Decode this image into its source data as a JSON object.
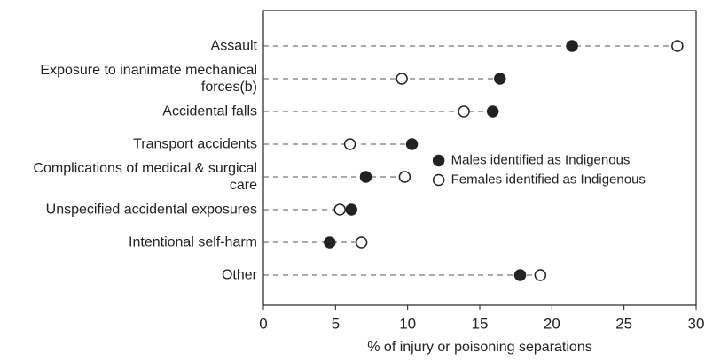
{
  "chart_data": {
    "type": "dot",
    "xlabel": "% of injury or poisoning separations",
    "categories": [
      "Assault",
      "Exposure to inanimate mechanical forces(b)",
      "Accidental falls",
      "Transport accidents",
      "Complications of medical & surgical care",
      "Unspecified accidental exposures",
      "Intentional self-harm",
      "Other"
    ],
    "series": [
      {
        "name": "Males identified as Indigenous",
        "color": "#222222",
        "filled": true,
        "values": [
          21.4,
          16.4,
          15.9,
          10.3,
          7.1,
          6.1,
          4.6,
          17.8
        ]
      },
      {
        "name": "Females identified as Indigenous",
        "color": "#222222",
        "filled": false,
        "values": [
          28.7,
          9.6,
          13.9,
          6.0,
          9.8,
          5.3,
          6.8,
          19.2
        ]
      }
    ],
    "xlim": [
      0,
      30
    ],
    "xticks": [
      0,
      5,
      10,
      15,
      20,
      25,
      30
    ],
    "legend": "center right",
    "grid": false
  }
}
